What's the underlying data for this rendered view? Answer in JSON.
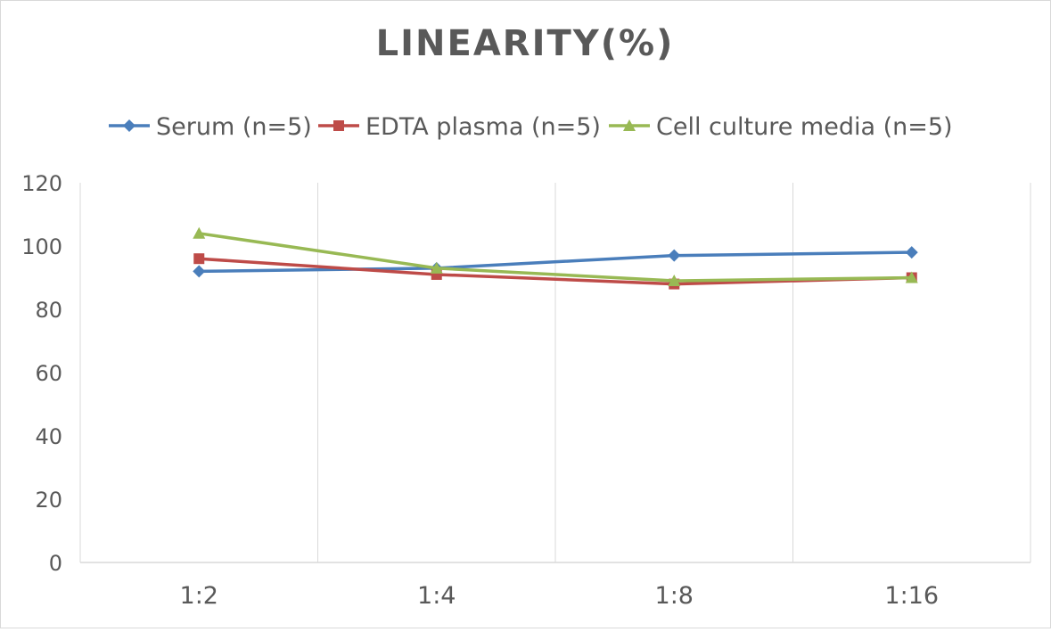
{
  "chart_data": {
    "type": "line",
    "title": "LINEARITY(%)",
    "xlabel": "",
    "ylabel": "",
    "categories": [
      "1:2",
      "1:4",
      "1:8",
      "1:16"
    ],
    "ylim": [
      0,
      120
    ],
    "yticks": [
      0,
      20,
      40,
      60,
      80,
      100,
      120
    ],
    "grid": "vertical",
    "legend": "top",
    "series": [
      {
        "name": "Serum (n=5)",
        "values": [
          92,
          93,
          97,
          98
        ],
        "color": "#4a7ebb",
        "marker": "diamond"
      },
      {
        "name": "EDTA plasma (n=5)",
        "values": [
          96,
          91,
          88,
          90
        ],
        "color": "#be4b48",
        "marker": "square"
      },
      {
        "name": "Cell culture media (n=5)",
        "values": [
          104,
          93,
          89,
          90
        ],
        "color": "#98b954",
        "marker": "triangle"
      }
    ]
  }
}
